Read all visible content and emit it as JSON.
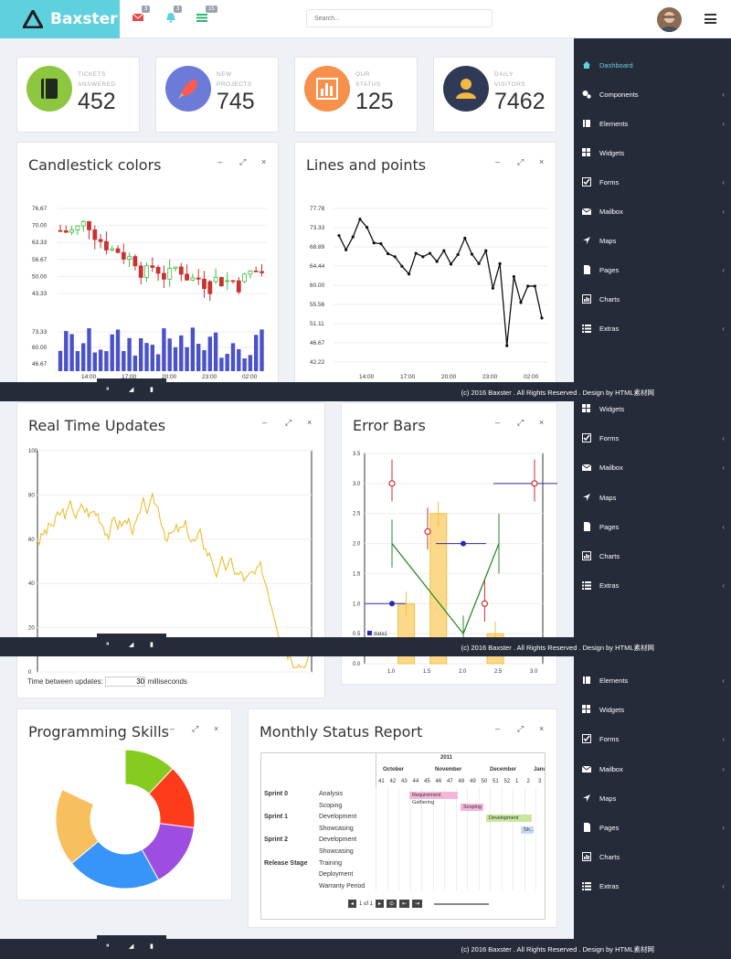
{
  "app": {
    "name": "Baxster"
  },
  "topbar": {
    "badges": [
      "3",
      "3",
      "15"
    ],
    "search_placeholder": "Search..."
  },
  "stats": [
    {
      "label1": "TICKETS",
      "label2": "ANSWERED",
      "value": "452",
      "color": "#8dc63f"
    },
    {
      "label1": "NEW",
      "label2": "PROJECTS",
      "value": "745",
      "color": "#6c7bd8"
    },
    {
      "label1": "OUR",
      "label2": "STATUS",
      "value": "125",
      "color": "#f6904a"
    },
    {
      "label1": "DAILY",
      "label2": "VISITORS",
      "value": "7462",
      "color": "#2f3a56"
    }
  ],
  "panels": {
    "candlestick": "Candlestick colors",
    "lines": "Lines and points",
    "realtime": "Real Time Updates",
    "error": "Error Bars",
    "skills": "Programming Skills",
    "monthly": "Monthly Status Report"
  },
  "sidebar": {
    "items": [
      "Dashboard",
      "Components",
      "Elements",
      "Widgets",
      "Forms",
      "Mailbox",
      "Maps",
      "Pages",
      "Charts",
      "Extras"
    ]
  },
  "footer": {
    "text": "(c) 2016 Baxster . All Rights Reserved . Design by HTML素材网"
  },
  "realtime": {
    "label": "Time between updates:",
    "value": "30",
    "unit": "milliseconds"
  },
  "chart_data": [
    {
      "type": "bar",
      "title": "Candlestick colors",
      "yticks": [
        "76.67",
        "70.00",
        "63.33",
        "56.67",
        "50.00",
        "43.33"
      ],
      "vol_ticks": [
        "73.33",
        "60.00",
        "46.67"
      ],
      "xticks": [
        "14:00",
        "17:00",
        "20:00",
        "23:00",
        "02:00"
      ]
    },
    {
      "type": "line",
      "title": "Lines and points",
      "yticks": [
        "77.78",
        "73.33",
        "68.89",
        "64.44",
        "60.00",
        "55.56",
        "51.11",
        "46.67",
        "42.22"
      ],
      "xticks": [
        "14:00",
        "17:00",
        "20:00",
        "23:00",
        "02:00"
      ],
      "y": [
        71.5,
        68.2,
        71.2,
        75.3,
        73.4,
        69.8,
        69.6,
        67.3,
        66.6,
        64.4,
        62.6,
        67.4,
        66.6,
        67.4,
        65.5,
        68.0,
        64.9,
        67.1,
        70.9,
        67.2,
        65.0,
        68.0,
        59.3,
        65.0,
        46.0,
        62.0,
        56.0,
        59.8,
        59.8,
        52.4
      ]
    },
    {
      "type": "line",
      "title": "Real Time Updates",
      "yticks": [
        "100",
        "80",
        "60",
        "40",
        "20",
        "0"
      ],
      "ylim": [
        0,
        100
      ]
    },
    {
      "type": "scatter",
      "title": "Error Bars",
      "yticks": [
        "3.5",
        "3.0",
        "2.5",
        "2.0",
        "1.5",
        "1.0",
        "0.5",
        "0.0"
      ],
      "xticks": [
        "1.0",
        "1.5",
        "2.0",
        "2.5",
        "3.0"
      ],
      "legend": "data1"
    },
    {
      "type": "pie",
      "title": "Programming Skills",
      "values": [
        12,
        15,
        15,
        22,
        18,
        18
      ],
      "colors": [
        "#86cb1f",
        "#ff3c1a",
        "#9d4ee0",
        "#3794f8",
        "#f7bf5e",
        "#ffffff"
      ]
    },
    {
      "type": "table",
      "title": "Monthly Status Report",
      "year": "2011",
      "months": [
        "October",
        "November",
        "December",
        "Janu"
      ],
      "weeks": [
        "41",
        "42",
        "43",
        "44",
        "45",
        "46",
        "47",
        "48",
        "49",
        "50",
        "51",
        "52",
        "1",
        "2",
        "3"
      ],
      "rows": [
        [
          "Sprint 0",
          "Analysis"
        ],
        [
          "",
          "Scoping"
        ],
        [
          "Sprint 1",
          "Development"
        ],
        [
          "",
          "Showcasing"
        ],
        [
          "Sprint 2",
          "Development"
        ],
        [
          "",
          "Showcasing"
        ],
        [
          "Release Stage",
          "Training"
        ],
        [
          "",
          "Deployment"
        ],
        [
          "",
          "Warranty Period"
        ]
      ],
      "bars": [
        "Requirement Gathering",
        "Scoping",
        "Development",
        "Sh..."
      ],
      "pager": "1 of 1"
    }
  ]
}
